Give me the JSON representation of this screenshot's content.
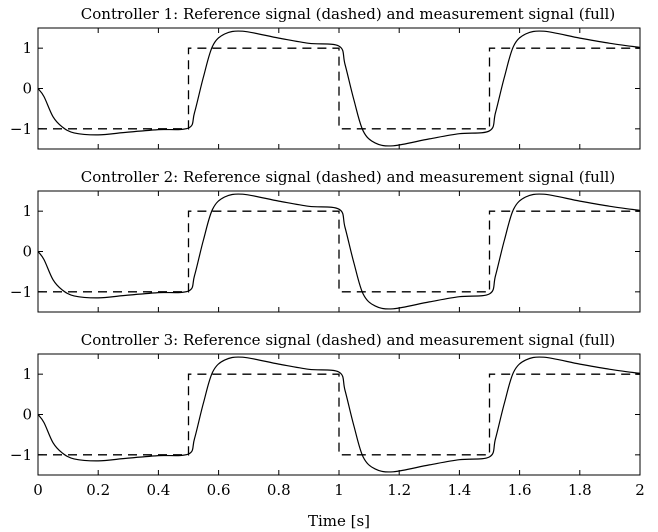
{
  "chart_data": [
    {
      "type": "line",
      "title": "Controller 1: Reference signal (dashed) and measurement signal (full)",
      "xlim": [
        0,
        2
      ],
      "ylim": [
        -1.5,
        1.5
      ],
      "yticks": [
        1,
        0,
        -1
      ],
      "ytick_labels": [
        "1",
        "0",
        "−1"
      ],
      "grid": false,
      "series": [
        {
          "x": [
            0,
            0.5,
            0.5,
            1.0,
            1.0,
            1.5,
            1.5,
            2.0
          ],
          "y": [
            -1,
            -1,
            1,
            1,
            -1,
            -1,
            1,
            1
          ],
          "style": "dashed"
        },
        {
          "x": [
            0,
            0.02,
            0.05,
            0.08,
            0.12,
            0.2,
            0.3,
            0.4,
            0.5,
            0.52,
            0.55,
            0.58,
            0.62,
            0.68,
            0.8,
            0.9,
            1.0,
            1.02,
            1.05,
            1.08,
            1.12,
            1.18,
            1.3,
            1.4,
            1.5,
            1.52,
            1.55,
            1.58,
            1.62,
            1.68,
            1.8,
            1.9,
            2.0
          ],
          "y": [
            0,
            -0.2,
            -0.7,
            -0.95,
            -1.1,
            -1.15,
            -1.08,
            -1.02,
            -0.98,
            -0.6,
            0.3,
            1.05,
            1.35,
            1.42,
            1.25,
            1.12,
            1.05,
            0.6,
            -0.3,
            -1.05,
            -1.35,
            -1.42,
            -1.25,
            -1.12,
            -1.05,
            -0.6,
            0.3,
            1.05,
            1.35,
            1.42,
            1.25,
            1.12,
            1.02
          ],
          "style": "solid"
        }
      ]
    },
    {
      "type": "line",
      "title": "Controller 2: Reference signal (dashed) and measurement signal (full)",
      "xlim": [
        0,
        2
      ],
      "ylim": [
        -1.5,
        1.5
      ],
      "yticks": [
        1,
        0,
        -1
      ],
      "ytick_labels": [
        "1",
        "0",
        "−1"
      ],
      "grid": false,
      "series": [
        {
          "x": [
            0,
            0.5,
            0.5,
            1.0,
            1.0,
            1.5,
            1.5,
            2.0
          ],
          "y": [
            -1,
            -1,
            1,
            1,
            -1,
            -1,
            1,
            1
          ],
          "style": "dashed"
        },
        {
          "x": [
            0,
            0.02,
            0.05,
            0.08,
            0.12,
            0.2,
            0.3,
            0.4,
            0.5,
            0.52,
            0.55,
            0.58,
            0.62,
            0.68,
            0.8,
            0.9,
            1.0,
            1.02,
            1.05,
            1.08,
            1.12,
            1.18,
            1.3,
            1.4,
            1.5,
            1.52,
            1.55,
            1.58,
            1.62,
            1.68,
            1.8,
            1.9,
            2.0
          ],
          "y": [
            0,
            -0.2,
            -0.7,
            -0.95,
            -1.1,
            -1.15,
            -1.08,
            -1.02,
            -0.98,
            -0.6,
            0.3,
            1.05,
            1.35,
            1.42,
            1.25,
            1.12,
            1.05,
            0.6,
            -0.3,
            -1.05,
            -1.35,
            -1.42,
            -1.25,
            -1.12,
            -1.05,
            -0.6,
            0.3,
            1.05,
            1.35,
            1.42,
            1.25,
            1.12,
            1.02
          ],
          "style": "solid"
        }
      ]
    },
    {
      "type": "line",
      "title": "Controller 3: Reference signal (dashed) and measurement signal (full)",
      "xlabel": "Time [s]",
      "xlim": [
        0,
        2
      ],
      "ylim": [
        -1.5,
        1.5
      ],
      "xticks": [
        0,
        0.2,
        0.4,
        0.6,
        0.8,
        1,
        1.2,
        1.4,
        1.6,
        1.8,
        2
      ],
      "xtick_labels": [
        "0",
        "0.2",
        "0.4",
        "0.6",
        "0.8",
        "1",
        "1.2",
        "1.4",
        "1.6",
        "1.8",
        "2"
      ],
      "yticks": [
        1,
        0,
        -1
      ],
      "ytick_labels": [
        "1",
        "0",
        "−1"
      ],
      "grid": false,
      "series": [
        {
          "x": [
            0,
            0.5,
            0.5,
            1.0,
            1.0,
            1.5,
            1.5,
            2.0
          ],
          "y": [
            -1,
            -1,
            1,
            1,
            -1,
            -1,
            1,
            1
          ],
          "style": "dashed"
        },
        {
          "x": [
            0,
            0.02,
            0.05,
            0.08,
            0.12,
            0.2,
            0.3,
            0.4,
            0.5,
            0.52,
            0.55,
            0.58,
            0.62,
            0.68,
            0.8,
            0.9,
            1.0,
            1.02,
            1.05,
            1.08,
            1.12,
            1.18,
            1.3,
            1.4,
            1.5,
            1.52,
            1.55,
            1.58,
            1.62,
            1.68,
            1.8,
            1.9,
            2.0
          ],
          "y": [
            0,
            -0.2,
            -0.7,
            -0.95,
            -1.1,
            -1.15,
            -1.08,
            -1.02,
            -0.98,
            -0.6,
            0.3,
            1.05,
            1.35,
            1.42,
            1.25,
            1.12,
            1.05,
            0.6,
            -0.3,
            -1.05,
            -1.35,
            -1.42,
            -1.25,
            -1.12,
            -1.05,
            -0.6,
            0.3,
            1.05,
            1.35,
            1.42,
            1.25,
            1.12,
            1.02
          ],
          "style": "solid"
        }
      ]
    }
  ]
}
